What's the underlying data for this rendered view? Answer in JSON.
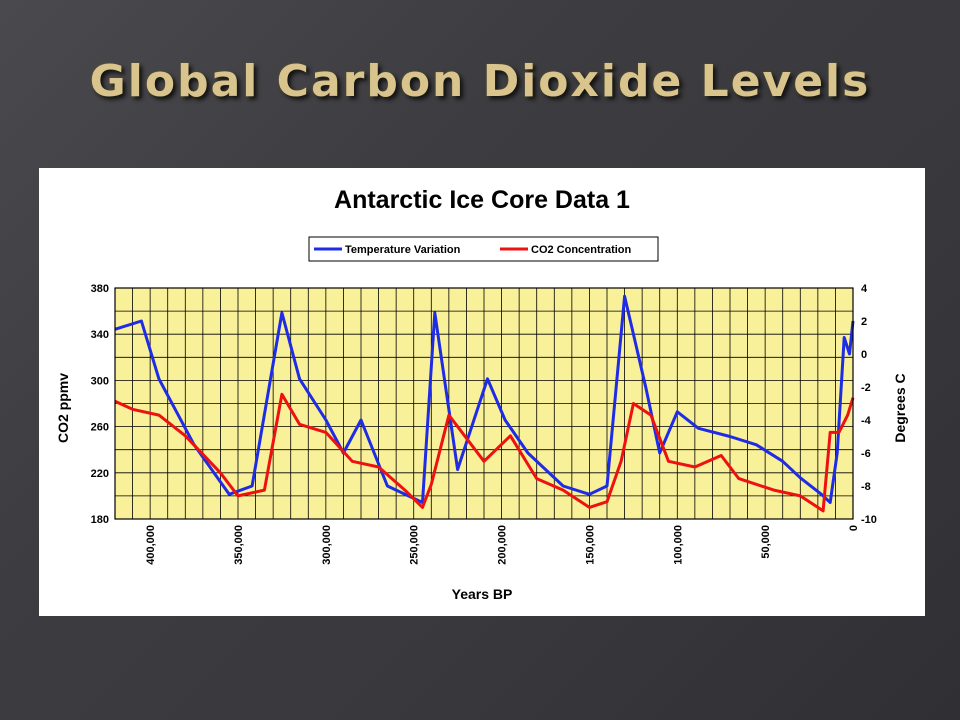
{
  "slide": {
    "title": "Global Carbon Dioxide Levels"
  },
  "colors": {
    "plot_background": "#f9f09a",
    "grid": "#000000",
    "temperature": "#1f2ce6",
    "co2": "#ee1111"
  },
  "chart_data": {
    "type": "line",
    "title": "Antarctic Ice Core Data 1",
    "xlabel": "Years BP",
    "ylabel": "CO2 ppmv",
    "y2label": "Degrees C",
    "xlim": [
      420000,
      0
    ],
    "ylim": [
      180,
      380
    ],
    "y2lim": [
      -10,
      4
    ],
    "x_ticks": [
      400000,
      350000,
      300000,
      250000,
      200000,
      150000,
      100000,
      50000,
      0
    ],
    "x_tick_labels": [
      "400,000",
      "350,000",
      "300,000",
      "250,000",
      "200,000",
      "150,000",
      "100,000",
      "50,000",
      "0"
    ],
    "y_ticks": [
      180,
      220,
      260,
      300,
      340,
      380
    ],
    "y2_ticks": [
      -10,
      -8,
      -6,
      -4,
      -2,
      0,
      2,
      4
    ],
    "grid": true,
    "legend": "top-center",
    "series": [
      {
        "name": "Temperature Variation",
        "axis": "right",
        "x": [
          420000,
          405000,
          395000,
          375000,
          355000,
          342000,
          325000,
          315000,
          300000,
          290000,
          280000,
          265000,
          245000,
          238000,
          225000,
          208000,
          198000,
          185000,
          165000,
          150000,
          140000,
          130000,
          118000,
          110000,
          100000,
          88000,
          70000,
          55000,
          40000,
          30000,
          18000,
          13000,
          9000,
          5000,
          2000,
          0
        ],
        "y": [
          1.5,
          2.0,
          -1.5,
          -5.5,
          -8.5,
          -8.0,
          2.5,
          -1.5,
          -4.0,
          -6.0,
          -4.0,
          -8.0,
          -9.0,
          2.5,
          -7.0,
          -1.5,
          -4.0,
          -6.0,
          -8.0,
          -8.5,
          -8.0,
          3.5,
          -2.0,
          -6.0,
          -3.5,
          -4.5,
          -5.0,
          -5.5,
          -6.5,
          -7.5,
          -8.5,
          -9.0,
          -6.0,
          1.0,
          0.0,
          2.0
        ]
      },
      {
        "name": "CO2 Concentration",
        "axis": "left",
        "x": [
          420000,
          410000,
          395000,
          380000,
          360000,
          350000,
          335000,
          325000,
          315000,
          300000,
          285000,
          270000,
          255000,
          245000,
          240000,
          230000,
          210000,
          195000,
          180000,
          165000,
          150000,
          140000,
          132000,
          125000,
          115000,
          105000,
          90000,
          75000,
          65000,
          45000,
          30000,
          20000,
          17000,
          13000,
          8000,
          3000,
          0
        ],
        "y": [
          282,
          275,
          270,
          252,
          220,
          200,
          205,
          288,
          262,
          255,
          230,
          225,
          205,
          190,
          210,
          270,
          230,
          252,
          215,
          205,
          190,
          195,
          230,
          280,
          270,
          230,
          225,
          235,
          215,
          205,
          200,
          190,
          187,
          255,
          255,
          270,
          285
        ]
      }
    ]
  }
}
